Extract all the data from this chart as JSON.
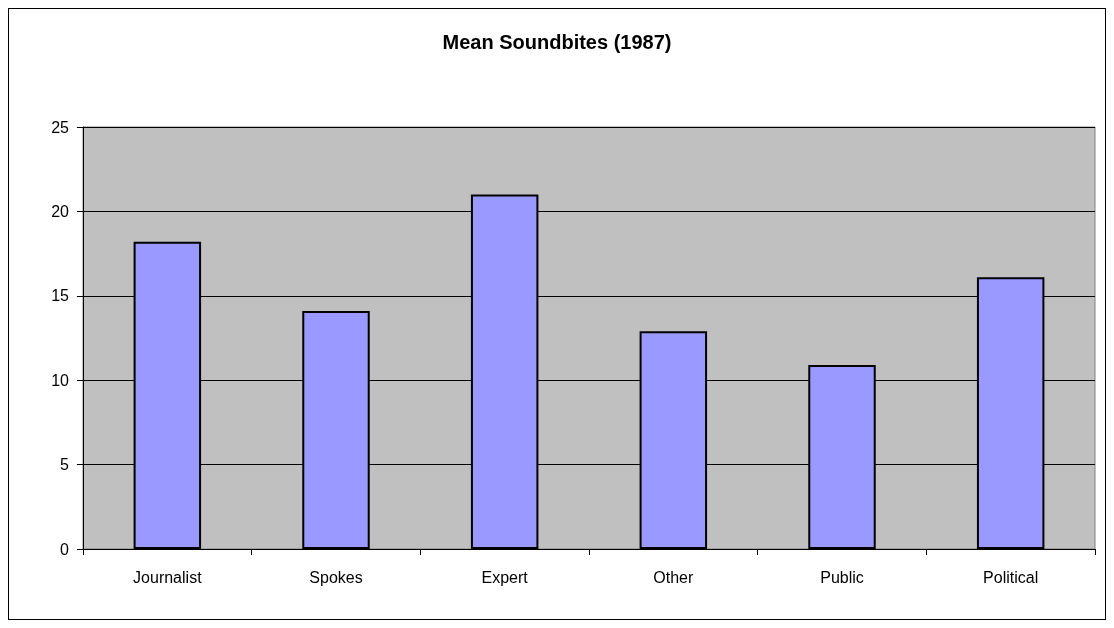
{
  "chart_data": {
    "type": "bar",
    "title": "Mean Soundbites (1987)",
    "categories": [
      "Journalist",
      "Spokes",
      "Expert",
      "Other",
      "Public",
      "Political"
    ],
    "values": [
      18.2,
      14.1,
      21.0,
      12.9,
      10.9,
      16.1
    ],
    "color": "#9999ff",
    "ylim": [
      0,
      25
    ],
    "yticks": [
      0,
      5,
      10,
      15,
      20,
      25
    ],
    "grid": "y"
  }
}
